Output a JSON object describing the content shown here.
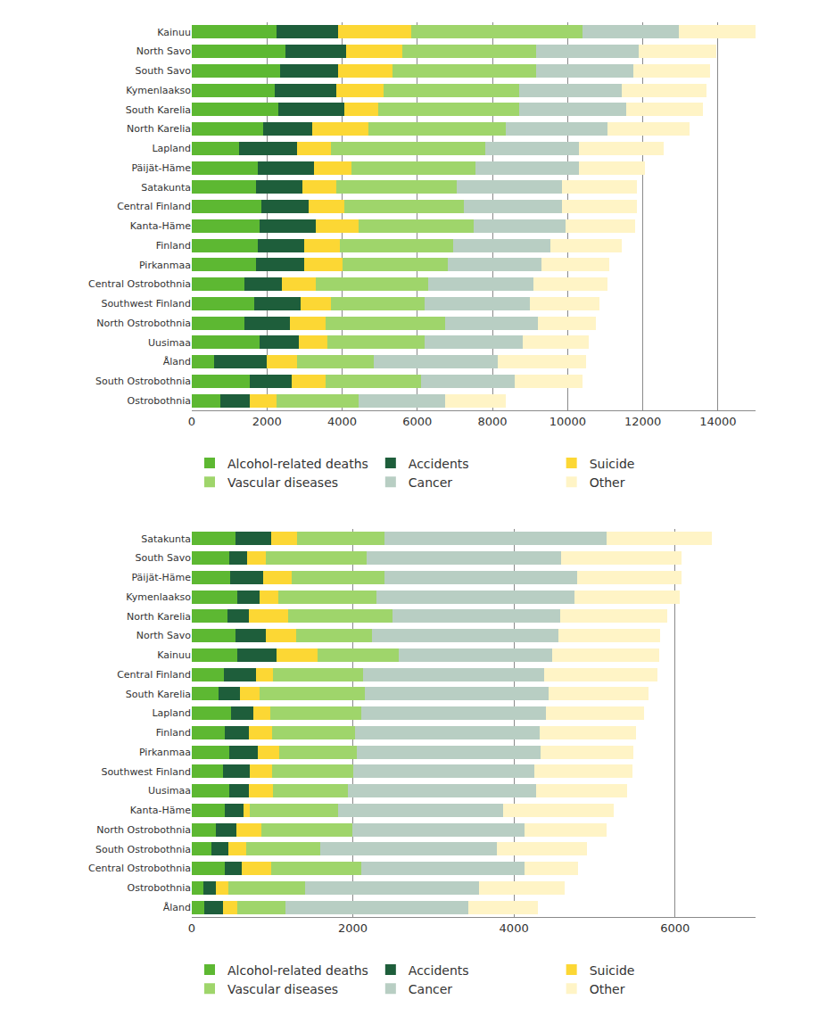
{
  "chart_data": [
    {
      "type": "bar",
      "orientation": "horizontal",
      "stacked": true,
      "grid": true,
      "legend": "bottom",
      "categories": [
        "Kainuu",
        "North Savo",
        "South Savo",
        "Kymenlaakso",
        "South Karelia",
        "North Karelia",
        "Lapland",
        "Päijät-Häme",
        "Satakunta",
        "Central Finland",
        "Kanta-Häme",
        "Finland",
        "Pirkanmaa",
        "Central Ostrobothnia",
        "Southwest Finland",
        "North Ostrobothnia",
        "Uusimaa",
        "Åland",
        "South Ostrobothnia",
        "Ostrobothnia"
      ],
      "xlim": [
        0,
        15000
      ],
      "xticks": [
        0,
        2000,
        4000,
        6000,
        8000,
        10000,
        12000,
        14000
      ],
      "series": [
        {
          "name": "Alcohol-related deaths",
          "color": "#5db832",
          "values": [
            2250,
            2500,
            2350,
            2200,
            2300,
            1900,
            1250,
            1750,
            1700,
            1850,
            1800,
            1750,
            1700,
            1400,
            1650,
            1400,
            1800,
            600,
            1550,
            750
          ]
        },
        {
          "name": "Accidents",
          "color": "#1e5e3b",
          "values": [
            1650,
            1600,
            1550,
            1650,
            1750,
            1300,
            1550,
            1500,
            1250,
            1250,
            1500,
            1250,
            1300,
            1000,
            1250,
            1200,
            1050,
            1400,
            1100,
            800
          ]
        },
        {
          "name": "Suicide",
          "color": "#fcd734",
          "values": [
            1950,
            1500,
            1450,
            1250,
            900,
            1500,
            900,
            1000,
            900,
            950,
            1150,
            950,
            1000,
            900,
            800,
            950,
            750,
            800,
            900,
            700
          ]
        },
        {
          "name": "Vascular diseases",
          "color": "#9fd56b",
          "values": [
            4550,
            3550,
            3800,
            3600,
            3750,
            3650,
            4100,
            3300,
            3200,
            3200,
            3050,
            3000,
            2800,
            3000,
            2500,
            3200,
            2600,
            2050,
            2550,
            2200
          ]
        },
        {
          "name": "Cancer",
          "color": "#b8cec3",
          "values": [
            2550,
            2750,
            2600,
            2750,
            2850,
            2700,
            2500,
            2750,
            2800,
            2600,
            2450,
            2600,
            2500,
            2800,
            2800,
            2450,
            2600,
            3300,
            2500,
            2300
          ]
        },
        {
          "name": "Other",
          "color": "#fff4c6",
          "values": [
            2050,
            2050,
            2050,
            2250,
            2050,
            2200,
            2250,
            1750,
            2000,
            2000,
            1850,
            1900,
            1800,
            1950,
            1850,
            1550,
            1750,
            2350,
            1800,
            1600
          ]
        }
      ]
    },
    {
      "type": "bar",
      "orientation": "horizontal",
      "stacked": true,
      "grid": true,
      "legend": "bottom",
      "categories": [
        "Satakunta",
        "South Savo",
        "Päijät-Häme",
        "Kymenlaakso",
        "North Karelia",
        "North Savo",
        "Kainuu",
        "Central Finland",
        "South Karelia",
        "Lapland",
        "Finland",
        "Pirkanmaa",
        "Southwest Finland",
        "Uusimaa",
        "Kanta-Häme",
        "North Ostrobothnia",
        "South Ostrobothnia",
        "Central Ostrobothnia",
        "Ostrobothnia",
        "Åland"
      ],
      "xlim": [
        0,
        7000
      ],
      "xticks": [
        0,
        2000,
        4000,
        6000
      ],
      "series": [
        {
          "name": "Alcohol-related deaths",
          "color": "#5db832",
          "values": [
            540,
            460,
            480,
            560,
            440,
            540,
            560,
            400,
            330,
            490,
            410,
            460,
            390,
            460,
            410,
            300,
            240,
            410,
            140,
            160
          ]
        },
        {
          "name": "Accidents",
          "color": "#1e5e3b",
          "values": [
            450,
            230,
            410,
            280,
            270,
            380,
            490,
            400,
            270,
            270,
            300,
            360,
            330,
            250,
            230,
            250,
            210,
            210,
            160,
            230
          ]
        },
        {
          "name": "Suicide",
          "color": "#fcd734",
          "values": [
            320,
            230,
            350,
            230,
            490,
            380,
            510,
            210,
            240,
            210,
            290,
            270,
            280,
            300,
            80,
            310,
            230,
            370,
            150,
            180
          ]
        },
        {
          "name": "Vascular diseases",
          "color": "#9fd56b",
          "values": [
            1080,
            1250,
            1150,
            1220,
            1290,
            940,
            1010,
            1120,
            1310,
            1130,
            1030,
            960,
            1010,
            930,
            1100,
            1130,
            910,
            1110,
            960,
            590
          ]
        },
        {
          "name": "Cancer",
          "color": "#b8cec3",
          "values": [
            2760,
            2420,
            2400,
            2460,
            2080,
            2310,
            1910,
            2250,
            2280,
            2300,
            2290,
            2280,
            2240,
            2340,
            2040,
            2140,
            2200,
            2030,
            2160,
            2270
          ]
        },
        {
          "name": "Other",
          "color": "#fff4c6",
          "values": [
            1310,
            1490,
            1290,
            1310,
            1330,
            1270,
            1320,
            1400,
            1240,
            1220,
            1200,
            1150,
            1220,
            1130,
            1380,
            1020,
            1120,
            670,
            1060,
            870
          ]
        }
      ]
    }
  ]
}
